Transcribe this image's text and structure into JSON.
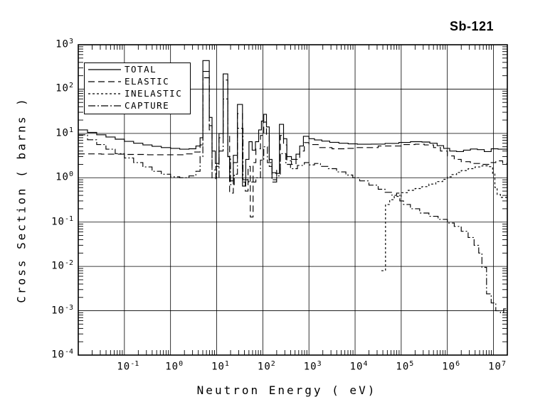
{
  "title": "Sb-121",
  "legend": {
    "items": [
      {
        "label": "TOTAL",
        "line_style": "solid"
      },
      {
        "label": "ELASTIC",
        "line_style": "long-dash"
      },
      {
        "label": "INELASTIC",
        "line_style": "short-dash"
      },
      {
        "label": "CAPTURE",
        "line_style": "dash-dot"
      }
    ],
    "position": "top-left"
  },
  "axes": {
    "xlabel": "Neutron Energy ( eV)",
    "ylabel": "Cross Section ( barns )",
    "x_tick_exponents": [
      -1,
      0,
      1,
      2,
      3,
      4,
      5,
      6,
      7
    ],
    "y_tick_exponents": [
      3,
      2,
      1,
      0,
      -1,
      -2,
      -3,
      -4
    ],
    "grid": "on",
    "line_color": "#000000",
    "background": "#ffffff"
  },
  "chart_data": {
    "type": "line",
    "title": "Sb-121",
    "xlabel": "Neutron Energy ( eV)",
    "ylabel": "Cross Section ( barns )",
    "x_scale": "log",
    "y_scale": "log",
    "xlim": [
      0.01,
      20000000
    ],
    "ylim": [
      0.0001,
      1000
    ],
    "xlog_range": [
      -2.0,
      7.3
    ],
    "ylog_range": [
      -4.0,
      3.0
    ],
    "interpolation": "step-post",
    "legend_position": "top-left",
    "series": [
      {
        "name": "TOTAL",
        "dash": [],
        "points_logE_barns": [
          [
            -2.0,
            12
          ],
          [
            -1.8,
            10.5
          ],
          [
            -1.6,
            9.3
          ],
          [
            -1.4,
            8.3
          ],
          [
            -1.2,
            7.4
          ],
          [
            -1.0,
            6.6
          ],
          [
            -0.8,
            6.0
          ],
          [
            -0.6,
            5.5
          ],
          [
            -0.4,
            5.1
          ],
          [
            -0.2,
            4.8
          ],
          [
            0.0,
            4.6
          ],
          [
            0.2,
            4.4
          ],
          [
            0.4,
            4.5
          ],
          [
            0.55,
            5.2
          ],
          [
            0.64,
            8.0
          ],
          [
            0.7,
            440
          ],
          [
            0.84,
            23
          ],
          [
            0.9,
            4.0
          ],
          [
            0.97,
            2.1
          ],
          [
            1.05,
            10
          ],
          [
            1.14,
            220
          ],
          [
            1.24,
            3.0
          ],
          [
            1.28,
            0.85
          ],
          [
            1.36,
            3.2
          ],
          [
            1.45,
            45
          ],
          [
            1.56,
            0.65
          ],
          [
            1.63,
            2.6
          ],
          [
            1.7,
            6.5
          ],
          [
            1.77,
            4.2
          ],
          [
            1.84,
            6.5
          ],
          [
            1.91,
            12
          ],
          [
            1.97,
            19
          ],
          [
            2.02,
            27
          ],
          [
            2.08,
            14
          ],
          [
            2.14,
            2.6
          ],
          [
            2.2,
            1.3
          ],
          [
            2.28,
            1.25
          ],
          [
            2.36,
            16
          ],
          [
            2.45,
            7.6
          ],
          [
            2.52,
            3.0
          ],
          [
            2.62,
            2.6
          ],
          [
            2.72,
            3.4
          ],
          [
            2.8,
            5.2
          ],
          [
            2.88,
            8.6
          ],
          [
            3.0,
            7.6
          ],
          [
            3.12,
            7.1
          ],
          [
            3.28,
            6.7
          ],
          [
            3.45,
            6.3
          ],
          [
            3.65,
            6.0
          ],
          [
            3.85,
            5.8
          ],
          [
            4.05,
            5.7
          ],
          [
            4.35,
            5.75
          ],
          [
            4.65,
            5.95
          ],
          [
            4.95,
            6.25
          ],
          [
            5.2,
            6.5
          ],
          [
            5.45,
            6.4
          ],
          [
            5.62,
            6.0
          ],
          [
            5.78,
            5.3
          ],
          [
            5.92,
            4.6
          ],
          [
            6.05,
            4.0
          ],
          [
            6.2,
            3.9
          ],
          [
            6.35,
            4.2
          ],
          [
            6.5,
            4.45
          ],
          [
            6.65,
            4.3
          ],
          [
            6.8,
            3.9
          ],
          [
            6.95,
            4.5
          ],
          [
            7.1,
            4.4
          ],
          [
            7.3,
            4.1
          ]
        ]
      },
      {
        "name": "ELASTIC",
        "dash": [
          9,
          5
        ],
        "points_logE_barns": [
          [
            -2.0,
            3.45
          ],
          [
            -1.5,
            3.4
          ],
          [
            -1.0,
            3.35
          ],
          [
            -0.5,
            3.3
          ],
          [
            0.0,
            3.3
          ],
          [
            0.3,
            3.45
          ],
          [
            0.5,
            3.8
          ],
          [
            0.64,
            5.5
          ],
          [
            0.7,
            250
          ],
          [
            0.84,
            15
          ],
          [
            0.9,
            0.95
          ],
          [
            0.98,
            1.8
          ],
          [
            1.05,
            8.0
          ],
          [
            1.14,
            160
          ],
          [
            1.24,
            9.0
          ],
          [
            1.28,
            0.45
          ],
          [
            1.36,
            2.2
          ],
          [
            1.45,
            28
          ],
          [
            1.56,
            0.8
          ],
          [
            1.62,
            0.5
          ],
          [
            1.68,
            1.8
          ],
          [
            1.73,
            0.13
          ],
          [
            1.79,
            2.2
          ],
          [
            1.85,
            4.5
          ],
          [
            1.95,
            9.0
          ],
          [
            2.02,
            18
          ],
          [
            2.08,
            9.0
          ],
          [
            2.14,
            1.8
          ],
          [
            2.2,
            0.8
          ],
          [
            2.3,
            1.5
          ],
          [
            2.38,
            9.0
          ],
          [
            2.45,
            5.5
          ],
          [
            2.52,
            2.4
          ],
          [
            2.62,
            2.0
          ],
          [
            2.72,
            2.6
          ],
          [
            2.8,
            4.0
          ],
          [
            2.9,
            6.2
          ],
          [
            3.0,
            5.6
          ],
          [
            3.2,
            4.8
          ],
          [
            3.5,
            4.5
          ],
          [
            3.8,
            4.6
          ],
          [
            4.0,
            4.8
          ],
          [
            4.5,
            5.2
          ],
          [
            5.0,
            5.6
          ],
          [
            5.3,
            5.7
          ],
          [
            5.5,
            5.5
          ],
          [
            5.7,
            4.8
          ],
          [
            5.85,
            4.0
          ],
          [
            6.0,
            3.1
          ],
          [
            6.15,
            2.6
          ],
          [
            6.3,
            2.3
          ],
          [
            6.5,
            2.1
          ],
          [
            6.7,
            2.0
          ],
          [
            6.9,
            2.2
          ],
          [
            7.05,
            2.4
          ],
          [
            7.2,
            2.1
          ],
          [
            7.3,
            2.0
          ]
        ]
      },
      {
        "name": "INELASTIC",
        "dash": [
          3,
          3
        ],
        "points_logE_barns": [
          [
            4.57,
            0.008
          ],
          [
            4.66,
            0.25
          ],
          [
            4.75,
            0.32
          ],
          [
            4.85,
            0.38
          ],
          [
            5.0,
            0.46
          ],
          [
            5.15,
            0.52
          ],
          [
            5.3,
            0.57
          ],
          [
            5.45,
            0.63
          ],
          [
            5.6,
            0.72
          ],
          [
            5.75,
            0.82
          ],
          [
            5.9,
            0.92
          ],
          [
            6.0,
            1.05
          ],
          [
            6.1,
            1.18
          ],
          [
            6.2,
            1.32
          ],
          [
            6.3,
            1.45
          ],
          [
            6.45,
            1.6
          ],
          [
            6.6,
            1.75
          ],
          [
            6.75,
            1.85
          ],
          [
            6.9,
            1.78
          ],
          [
            6.98,
            1.25
          ],
          [
            7.03,
            0.6
          ],
          [
            7.08,
            0.42
          ],
          [
            7.15,
            0.36
          ],
          [
            7.3,
            0.34
          ]
        ]
      },
      {
        "name": "CAPTURE",
        "dash": [
          10,
          3,
          2,
          3
        ],
        "points_logE_barns": [
          [
            -2.0,
            9.3
          ],
          [
            -1.8,
            7.2
          ],
          [
            -1.6,
            5.6
          ],
          [
            -1.4,
            4.4
          ],
          [
            -1.2,
            3.5
          ],
          [
            -1.0,
            2.8
          ],
          [
            -0.8,
            2.2
          ],
          [
            -0.6,
            1.75
          ],
          [
            -0.4,
            1.4
          ],
          [
            -0.2,
            1.2
          ],
          [
            0.0,
            1.05
          ],
          [
            0.2,
            1.0
          ],
          [
            0.4,
            1.1
          ],
          [
            0.55,
            1.4
          ],
          [
            0.64,
            3.0
          ],
          [
            0.7,
            180
          ],
          [
            0.84,
            12
          ],
          [
            0.9,
            1.5
          ],
          [
            1.0,
            1.0
          ],
          [
            1.05,
            4.0
          ],
          [
            1.14,
            60
          ],
          [
            1.24,
            3.0
          ],
          [
            1.3,
            0.7
          ],
          [
            1.38,
            1.2
          ],
          [
            1.45,
            13
          ],
          [
            1.57,
            0.9
          ],
          [
            1.7,
            0.8
          ],
          [
            1.85,
            1.0
          ],
          [
            1.95,
            2.5
          ],
          [
            2.02,
            5.0
          ],
          [
            2.1,
            2.2
          ],
          [
            2.2,
            0.9
          ],
          [
            2.3,
            1.1
          ],
          [
            2.38,
            3.5
          ],
          [
            2.5,
            2.0
          ],
          [
            2.6,
            1.6
          ],
          [
            2.75,
            1.9
          ],
          [
            2.9,
            2.2
          ],
          [
            3.0,
            1.95
          ],
          [
            3.12,
            2.1
          ],
          [
            3.25,
            1.8
          ],
          [
            3.42,
            1.6
          ],
          [
            3.6,
            1.35
          ],
          [
            3.8,
            1.15
          ],
          [
            3.95,
            1.0
          ],
          [
            4.1,
            0.85
          ],
          [
            4.3,
            0.68
          ],
          [
            4.5,
            0.55
          ],
          [
            4.65,
            0.47
          ],
          [
            4.8,
            0.4
          ],
          [
            4.9,
            0.45
          ],
          [
            4.97,
            0.3
          ],
          [
            5.05,
            0.25
          ],
          [
            5.2,
            0.2
          ],
          [
            5.4,
            0.16
          ],
          [
            5.6,
            0.135
          ],
          [
            5.8,
            0.115
          ],
          [
            6.0,
            0.095
          ],
          [
            6.15,
            0.08
          ],
          [
            6.3,
            0.062
          ],
          [
            6.45,
            0.045
          ],
          [
            6.58,
            0.03
          ],
          [
            6.68,
            0.02
          ],
          [
            6.75,
            0.0095
          ],
          [
            6.85,
            0.0024
          ],
          [
            6.95,
            0.0015
          ],
          [
            7.05,
            0.001
          ],
          [
            7.15,
            0.0009
          ],
          [
            7.22,
            0.0011
          ],
          [
            7.3,
            0.0009
          ]
        ]
      }
    ]
  }
}
